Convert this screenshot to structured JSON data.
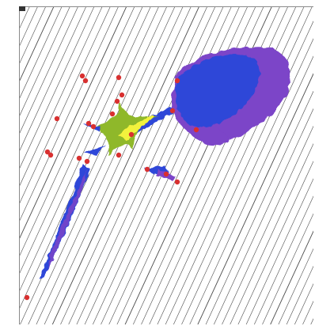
{
  "image": {
    "kind": "fractal visualization",
    "colors": {
      "background": "#ffffff",
      "grid_lines": "#2b2b2b",
      "outer_blob": "#7b44c8",
      "inner_blob": "#2f47d8",
      "core_green": "#8fb82a",
      "core_yellow": "#f2f23c",
      "points": "#d83030",
      "border": "#8a8a8a"
    }
  }
}
